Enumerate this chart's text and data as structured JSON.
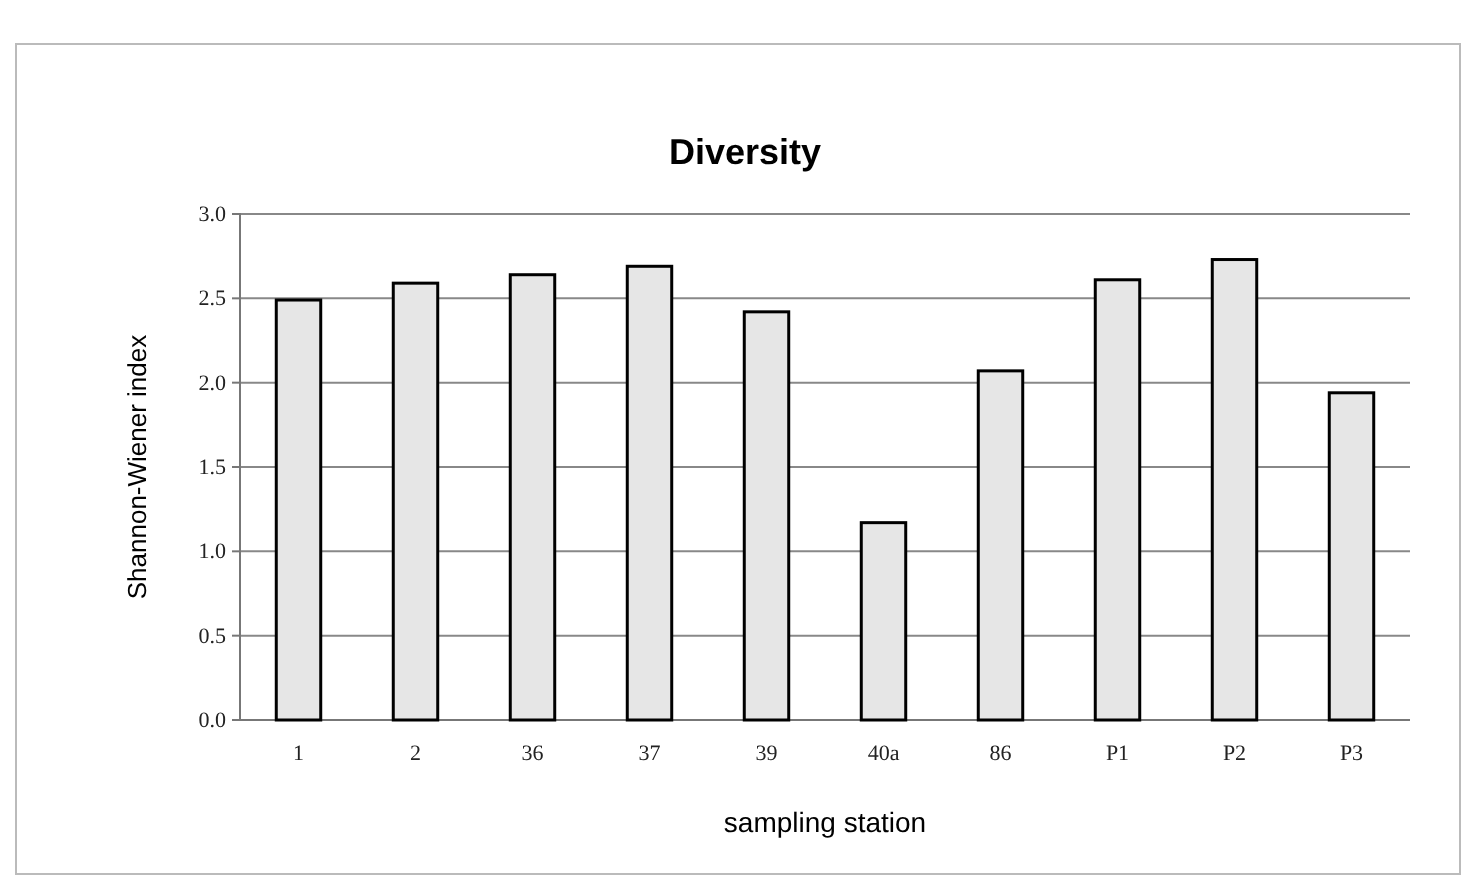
{
  "chart_data": {
    "type": "bar",
    "title": "Diversity",
    "xlabel": "sampling station",
    "ylabel": "Shannon-Wiener index",
    "categories": [
      "1",
      "2",
      "36",
      "37",
      "39",
      "40a",
      "86",
      "P1",
      "P2",
      "P3"
    ],
    "values": [
      2.49,
      2.59,
      2.64,
      2.69,
      2.42,
      1.17,
      2.07,
      2.61,
      2.73,
      1.94
    ],
    "color": "#e6e6e6",
    "ylim": [
      0,
      3
    ],
    "yticks": [
      {
        "value": 0,
        "label": "0.0"
      },
      {
        "value": 0.5,
        "label": "0.5"
      },
      {
        "value": 1,
        "label": "1.0"
      },
      {
        "value": 1.5,
        "label": "1.5"
      },
      {
        "value": 2,
        "label": "2.0"
      },
      {
        "value": 2.5,
        "label": "2.5"
      },
      {
        "value": 3,
        "label": "3.0"
      }
    ],
    "grid": "y"
  }
}
